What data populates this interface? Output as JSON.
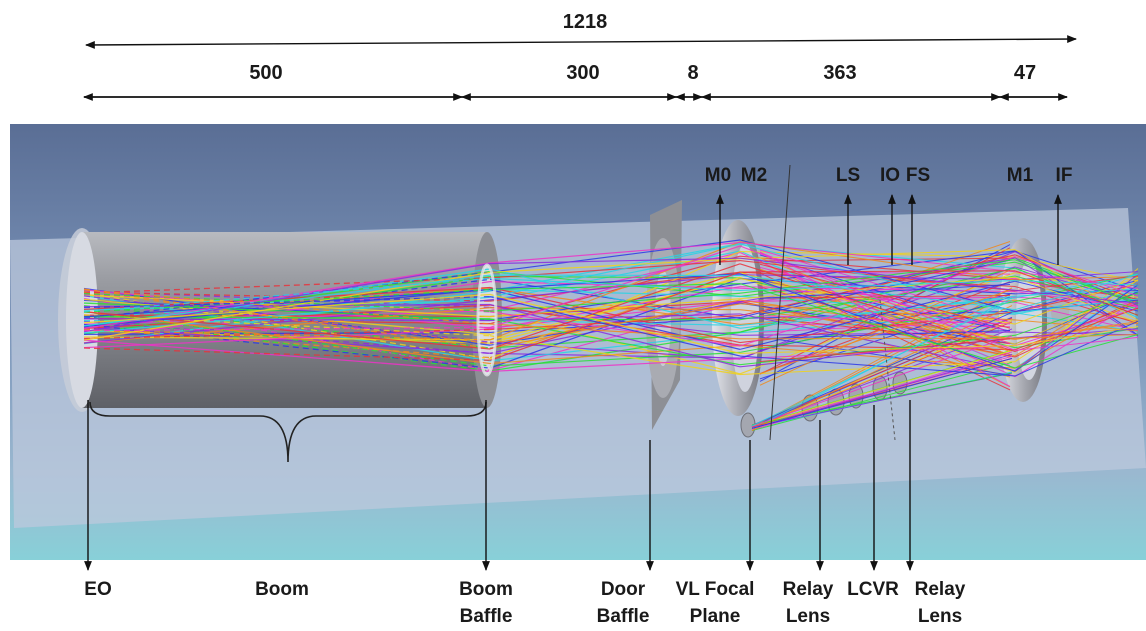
{
  "dimensions": {
    "total": "1218",
    "segments": [
      "500",
      "300",
      "8",
      "363",
      "47"
    ]
  },
  "top_labels": [
    "M0",
    "M2",
    "LS",
    "IO",
    "FS",
    "M1",
    "IF"
  ],
  "bottom_labels": {
    "eo": "EO",
    "boom": "Boom",
    "boom_baffle": [
      "Boom",
      "Baffle"
    ],
    "door_baffle": [
      "Door",
      "Baffle"
    ],
    "vl_focal_plane": [
      "VL Focal",
      "Plane"
    ],
    "relay_lens_1": [
      "Relay",
      "Lens"
    ],
    "lcvr": "LCVR",
    "relay_lens_2": [
      "Relay",
      "Lens"
    ]
  },
  "colors": {
    "background_top": "#5a6e95",
    "background_bottom": "#88d0d8",
    "plane": "#bcc8dc",
    "tube": "#8a8c92",
    "ray_colors": [
      "#e8333c",
      "#27e036",
      "#2c38e8",
      "#f0d21c",
      "#ee33c8",
      "#28d4e4",
      "#f08a1c",
      "#8a2ce0"
    ]
  }
}
